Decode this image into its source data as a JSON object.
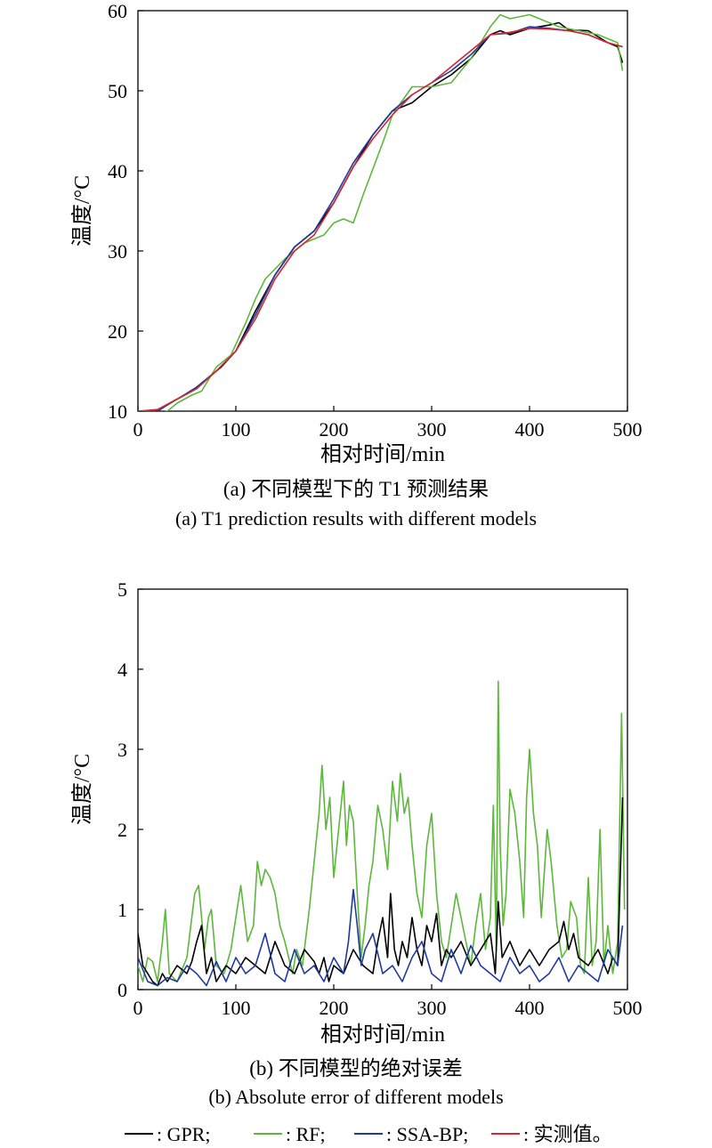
{
  "chart_data": [
    {
      "type": "line",
      "xlabel": "相对时间/min",
      "ylabel": "温度/°C",
      "xlim": [
        0,
        500
      ],
      "ylim": [
        10,
        60
      ],
      "xticks": [
        0,
        100,
        200,
        300,
        400,
        500
      ],
      "yticks": [
        10,
        20,
        30,
        40,
        50,
        60
      ],
      "caption_cn": "(a) 不同模型下的 T1 预测结果",
      "caption_en": "(a) T1 prediction results with different models",
      "grid": false,
      "colors": {
        "GPR": "#000000",
        "RF": "#5cb83a",
        "SSA-BP": "#1f3a9e",
        "实测值": "#d7262e"
      },
      "series": [
        {
          "name": "GPR",
          "x": [
            0,
            15,
            25,
            40,
            55,
            70,
            85,
            100,
            120,
            140,
            160,
            180,
            200,
            220,
            240,
            260,
            280,
            300,
            320,
            340,
            360,
            370,
            380,
            400,
            420,
            430,
            440,
            460,
            480,
            490,
            495
          ],
          "values": [
            10,
            9.8,
            10.5,
            11.5,
            12.5,
            14,
            15.5,
            17.5,
            22.5,
            27,
            30.5,
            32.5,
            36,
            40.5,
            44.5,
            47.5,
            48.5,
            50.5,
            52,
            54,
            57,
            57.5,
            57,
            57.8,
            58.2,
            58.5,
            57.6,
            57.5,
            56,
            55.5,
            53.5
          ]
        },
        {
          "name": "RF",
          "x": [
            0,
            20,
            30,
            40,
            55,
            65,
            80,
            95,
            110,
            120,
            130,
            150,
            170,
            190,
            200,
            210,
            220,
            230,
            250,
            260,
            280,
            300,
            320,
            340,
            360,
            370,
            380,
            400,
            410,
            430,
            450,
            470,
            480,
            490,
            495
          ],
          "values": [
            10,
            9.7,
            10,
            11,
            12,
            12.5,
            15.5,
            17,
            21,
            24,
            26.5,
            29,
            31,
            32,
            33.5,
            34,
            33.5,
            37,
            43.5,
            47,
            50.5,
            50.5,
            51,
            54,
            58,
            59.5,
            59,
            59.5,
            59,
            58,
            57.5,
            57,
            56.5,
            56,
            52.5
          ]
        },
        {
          "name": "SSA-BP",
          "x": [
            0,
            20,
            40,
            60,
            80,
            100,
            120,
            140,
            160,
            180,
            200,
            220,
            240,
            260,
            280,
            300,
            320,
            340,
            360,
            380,
            400,
            420,
            440,
            460,
            480,
            495
          ],
          "values": [
            10,
            10,
            11.5,
            13,
            15,
            17.5,
            22,
            27,
            30.5,
            32.5,
            36.5,
            41,
            44.5,
            47.5,
            49.5,
            51,
            52.5,
            54.5,
            57,
            57.2,
            58,
            57.8,
            57.5,
            57,
            56,
            55.5
          ]
        },
        {
          "name": "实测值",
          "x": [
            0,
            20,
            40,
            60,
            80,
            100,
            120,
            140,
            160,
            180,
            200,
            220,
            240,
            260,
            280,
            300,
            320,
            340,
            360,
            380,
            400,
            420,
            440,
            460,
            480,
            495
          ],
          "values": [
            10,
            10.2,
            11.5,
            12.8,
            15,
            17.5,
            21.5,
            26.5,
            30,
            32,
            36,
            40.5,
            44,
            47,
            49.5,
            51,
            53,
            55,
            57,
            57.3,
            57.8,
            57.7,
            57.5,
            57,
            56,
            55.5
          ]
        }
      ]
    },
    {
      "type": "line",
      "xlabel": "相对时间/min",
      "ylabel": "温度/°C",
      "xlim": [
        0,
        500
      ],
      "ylim": [
        0,
        5
      ],
      "xticks": [
        0,
        100,
        200,
        300,
        400,
        500
      ],
      "yticks": [
        0,
        1,
        2,
        3,
        4,
        5
      ],
      "caption_cn": "(b) 不同模型的绝对误差",
      "caption_en": "(b) Absolute error of different models",
      "grid": false,
      "series": [
        {
          "name": "RF",
          "x": [
            0,
            5,
            10,
            15,
            20,
            25,
            28,
            32,
            40,
            50,
            58,
            62,
            68,
            72,
            75,
            80,
            88,
            95,
            100,
            105,
            112,
            118,
            122,
            126,
            130,
            135,
            140,
            145,
            150,
            158,
            162,
            168,
            175,
            180,
            185,
            188,
            192,
            196,
            200,
            205,
            210,
            213,
            216,
            220,
            224,
            228,
            232,
            236,
            240,
            245,
            250,
            255,
            260,
            265,
            268,
            272,
            276,
            280,
            285,
            290,
            295,
            300,
            305,
            310,
            315,
            320,
            325,
            330,
            335,
            340,
            345,
            350,
            355,
            360,
            363,
            366,
            368,
            370,
            373,
            376,
            380,
            385,
            390,
            394,
            397,
            400,
            404,
            408,
            412,
            418,
            422,
            428,
            433,
            438,
            442,
            448,
            452,
            456,
            460,
            464,
            468,
            472,
            476,
            480,
            485,
            490,
            494,
            497
          ],
          "values": [
            0.3,
            0.1,
            0.4,
            0.35,
            0.1,
            0.6,
            1.0,
            0.2,
            0.1,
            0.4,
            1.2,
            1.3,
            0.5,
            0.9,
            1.0,
            0.3,
            0.2,
            0.5,
            0.9,
            1.3,
            0.6,
            0.8,
            1.6,
            1.3,
            1.5,
            1.4,
            1.2,
            0.8,
            0.6,
            0.2,
            0.5,
            0.3,
            1.0,
            1.6,
            2.2,
            2.8,
            2.0,
            2.4,
            1.4,
            2.0,
            2.6,
            1.8,
            2.3,
            2.1,
            1.2,
            0.4,
            0.8,
            1.3,
            1.6,
            2.3,
            2.0,
            1.5,
            2.6,
            2.1,
            2.7,
            2.2,
            2.4,
            1.8,
            1.2,
            0.9,
            1.8,
            2.2,
            1.2,
            0.6,
            0.4,
            0.8,
            1.2,
            0.9,
            0.6,
            0.3,
            0.8,
            1.2,
            0.5,
            0.9,
            2.3,
            0.5,
            3.85,
            1.8,
            0.8,
            1.2,
            2.5,
            2.2,
            1.6,
            0.9,
            2.4,
            3.0,
            2.2,
            1.8,
            0.9,
            2.0,
            1.6,
            0.8,
            0.4,
            0.5,
            1.1,
            0.9,
            0.3,
            0.2,
            1.4,
            0.3,
            0.6,
            2.0,
            0.3,
            0.8,
            0.2,
            0.6,
            3.45,
            1.0
          ]
        },
        {
          "name": "GPR",
          "x": [
            0,
            5,
            10,
            15,
            20,
            25,
            30,
            40,
            50,
            55,
            60,
            65,
            70,
            75,
            80,
            90,
            100,
            110,
            120,
            130,
            140,
            150,
            160,
            170,
            180,
            185,
            190,
            195,
            200,
            210,
            220,
            230,
            240,
            245,
            250,
            255,
            258,
            262,
            266,
            270,
            275,
            280,
            285,
            290,
            295,
            300,
            305,
            310,
            315,
            320,
            330,
            340,
            350,
            360,
            365,
            368,
            372,
            380,
            390,
            400,
            410,
            420,
            430,
            435,
            440,
            445,
            450,
            460,
            470,
            480,
            485,
            490,
            495
          ],
          "values": [
            0.7,
            0.3,
            0.2,
            0.1,
            0.05,
            0.2,
            0.1,
            0.3,
            0.2,
            0.35,
            0.6,
            0.8,
            0.2,
            0.4,
            0.1,
            0.3,
            0.2,
            0.4,
            0.3,
            0.2,
            0.6,
            0.3,
            0.2,
            0.5,
            0.35,
            0.2,
            0.4,
            0.1,
            0.3,
            0.2,
            0.5,
            0.3,
            0.2,
            0.6,
            0.9,
            0.4,
            1.2,
            0.5,
            0.3,
            0.6,
            0.4,
            0.9,
            0.5,
            0.3,
            0.8,
            0.6,
            0.95,
            0.3,
            0.5,
            0.4,
            0.6,
            0.3,
            0.5,
            0.7,
            0.2,
            1.1,
            0.4,
            0.6,
            0.3,
            0.5,
            0.3,
            0.5,
            0.6,
            0.85,
            0.5,
            0.7,
            0.4,
            0.3,
            0.5,
            0.2,
            0.4,
            0.3,
            2.4
          ]
        },
        {
          "name": "SSA-BP",
          "x": [
            0,
            10,
            20,
            30,
            40,
            50,
            60,
            70,
            80,
            90,
            100,
            110,
            120,
            130,
            140,
            150,
            160,
            170,
            180,
            190,
            200,
            210,
            215,
            220,
            224,
            228,
            232,
            240,
            250,
            260,
            270,
            280,
            290,
            300,
            310,
            320,
            330,
            340,
            350,
            360,
            370,
            380,
            390,
            400,
            410,
            420,
            430,
            440,
            450,
            460,
            470,
            480,
            490,
            495
          ],
          "values": [
            0.4,
            0.1,
            0.05,
            0.15,
            0.1,
            0.3,
            0.2,
            0.05,
            0.35,
            0.1,
            0.4,
            0.2,
            0.3,
            0.7,
            0.2,
            0.1,
            0.5,
            0.2,
            0.3,
            0.1,
            0.4,
            0.2,
            0.6,
            1.25,
            0.8,
            0.3,
            0.5,
            0.7,
            0.2,
            0.3,
            0.1,
            0.4,
            0.6,
            0.2,
            0.1,
            0.5,
            0.2,
            0.55,
            0.3,
            0.2,
            0.1,
            0.4,
            0.2,
            0.3,
            0.1,
            0.2,
            0.4,
            0.1,
            0.3,
            0.2,
            0.1,
            0.5,
            0.3,
            0.8
          ]
        }
      ]
    }
  ],
  "legend": [
    {
      "name": "GPR",
      "color": "#000000",
      "label": ": GPR;"
    },
    {
      "name": "RF",
      "color": "#5cb83a",
      "label": ": RF;"
    },
    {
      "name": "SSA-BP",
      "color": "#1f3a9e",
      "label": ": SSA-BP;"
    },
    {
      "name": "实测值",
      "color": "#d7262e",
      "label": ": 实测值。"
    }
  ]
}
